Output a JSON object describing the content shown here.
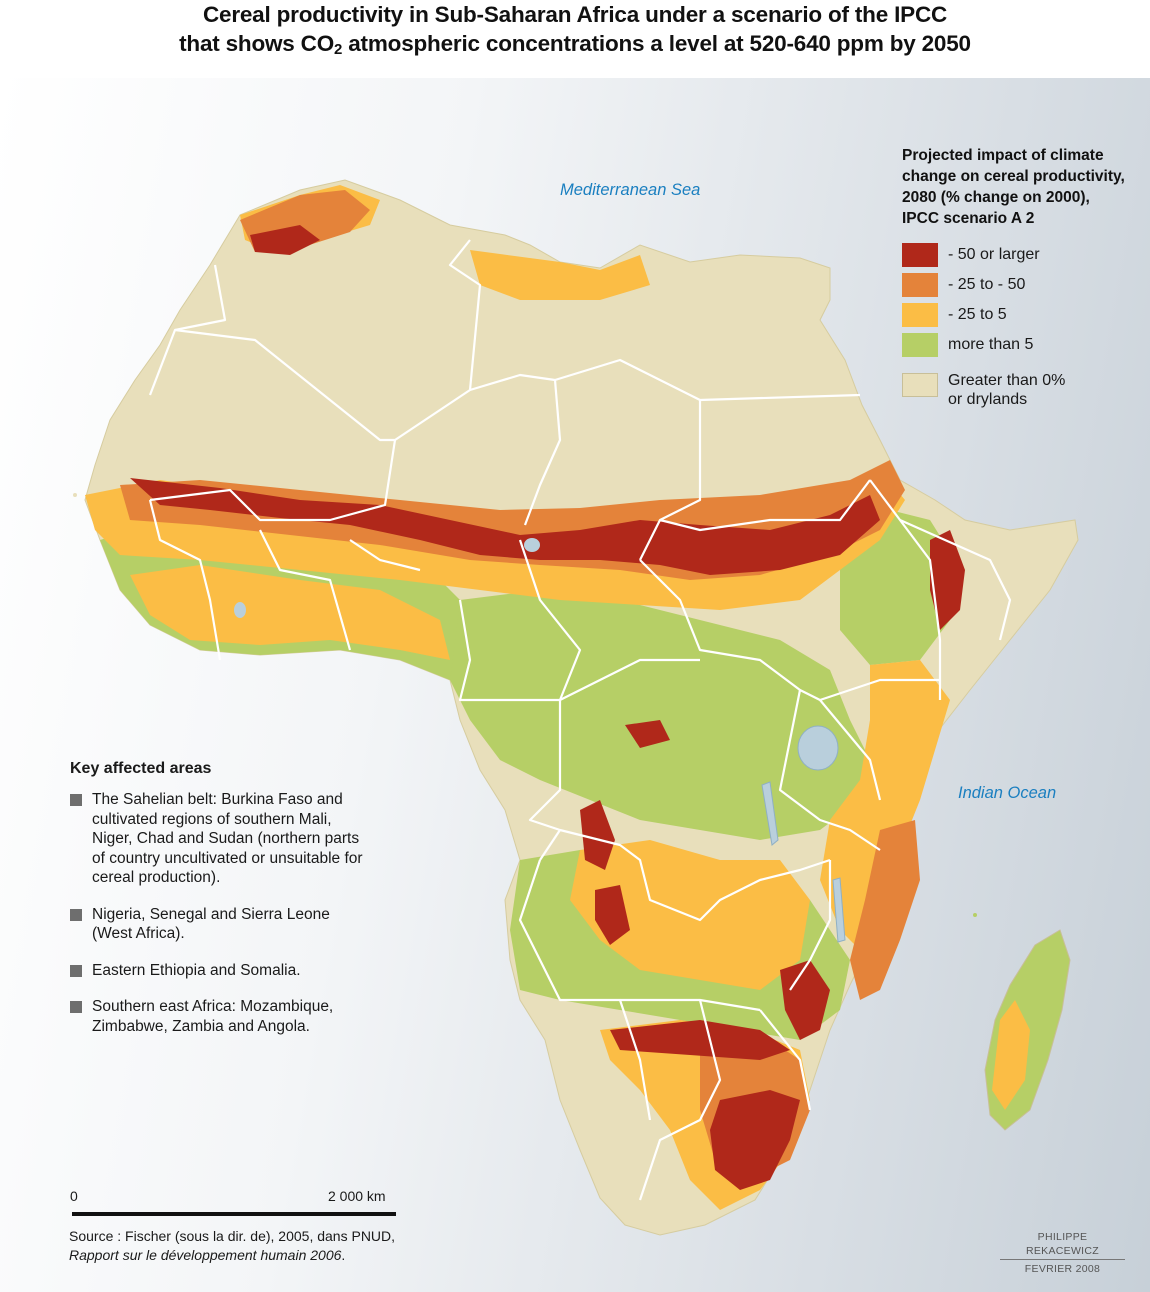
{
  "title": {
    "line1": "Cereal productivity in Sub-Saharan Africa under a scenario of the IPCC",
    "line2_prefix": "that shows CO",
    "line2_sub": "2",
    "line2_suffix": " atmospheric concentrations a level at 520-640 ppm by 2050"
  },
  "labels": {
    "mediterranean": "Mediterranean Sea",
    "indian_ocean": "Indian Ocean"
  },
  "legend": {
    "title": "Projected impact of climate\nchange on cereal productivity,\n2080 (% change on 2000),\nIPCC scenario A 2",
    "items": [
      {
        "label": "- 50 or larger",
        "color": "#b0281a"
      },
      {
        "label": "- 25 to - 50",
        "color": "#e4833a"
      },
      {
        "label": "- 25 to 5",
        "color": "#fbbd45"
      },
      {
        "label": "more than 5",
        "color": "#b6cf66"
      }
    ],
    "other": {
      "label": "Greater than 0%\nor drylands",
      "color": "#e8dfbb"
    }
  },
  "key": {
    "title": "Key affected areas",
    "items": [
      "The Sahelian belt: Burkina Faso and cultivated regions of southern Mali, Niger, Chad and Sudan (northern parts of country uncultivated or unsuitable for cereal production).",
      "Nigeria, Senegal and Sierra Leone (West Africa).",
      "Eastern Ethiopia and Somalia.",
      "Southern east Africa: Mozambique, Zimbabwe, Zambia and Angola."
    ]
  },
  "scale": {
    "zero": "0",
    "max": "2 000 km"
  },
  "source": {
    "line1": "Source : Fischer (sous la dir. de), 2005, dans PNUD,",
    "line2": "Rapport sur le développement humain 2006",
    "line2_end": "."
  },
  "credit": {
    "author": "PHILIPPE REKACEWICZ",
    "date": "FEVRIER 2008"
  },
  "colors": {
    "severe": "#b0281a",
    "high": "#e4833a",
    "moderate": "#fbbd45",
    "positive": "#b6cf66",
    "dryland": "#e8dfbb",
    "water": "#b9cfdc",
    "label_blue": "#1a7fc0"
  }
}
